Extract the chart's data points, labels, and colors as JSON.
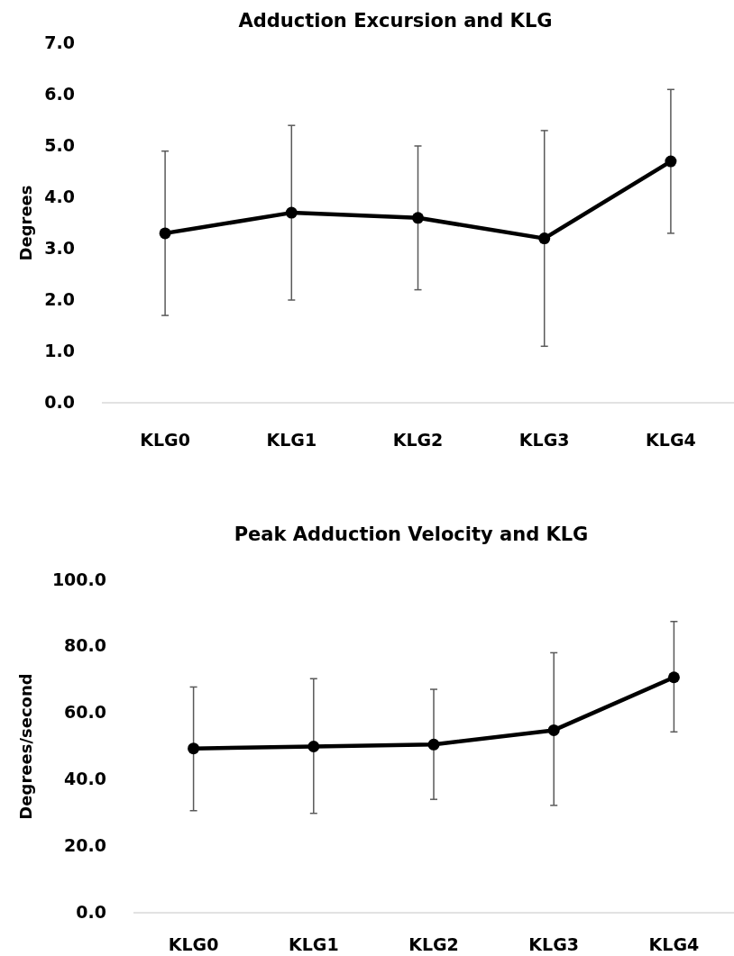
{
  "chart_data": [
    {
      "type": "line",
      "title": "Adduction Excursion and KLG",
      "ylabel": "Degrees",
      "categories": [
        "KLG0",
        "KLG1",
        "KLG2",
        "KLG3",
        "KLG4"
      ],
      "series": [
        {
          "color": "#000000",
          "values": [
            3.3,
            3.7,
            3.6,
            3.2,
            4.7
          ],
          "errors": [
            [
              1.7,
              4.9
            ],
            [
              2.0,
              5.4
            ],
            [
              2.2,
              5.0
            ],
            [
              1.1,
              5.3
            ],
            [
              3.3,
              6.1
            ]
          ]
        }
      ],
      "ylim": [
        0,
        7
      ],
      "yticks": [
        {
          "value": 0,
          "label": "0.0"
        },
        {
          "value": 1,
          "label": "1.0"
        },
        {
          "value": 2,
          "label": "2.0"
        },
        {
          "value": 3,
          "label": "3.0"
        },
        {
          "value": 4,
          "label": "4.0"
        },
        {
          "value": 5,
          "label": "5.0"
        },
        {
          "value": 6,
          "label": "6.0"
        },
        {
          "value": 7,
          "label": "7.0"
        }
      ],
      "marker": "circle",
      "line_style": "solid",
      "grid": false
    },
    {
      "type": "line",
      "title": "Peak Adduction Velocity and KLG",
      "ylabel": "Degrees/second",
      "categories": [
        "KLG0",
        "KLG1",
        "KLG2",
        "KLG3",
        "KLG4"
      ],
      "series": [
        {
          "color": "#000000",
          "values": [
            49.4,
            50.0,
            50.6,
            54.9,
            70.8
          ],
          "errors": [
            [
              30.7,
              67.9
            ],
            [
              29.9,
              70.4
            ],
            [
              34.1,
              67.2
            ],
            [
              32.3,
              78.2
            ],
            [
              54.4,
              87.6
            ]
          ]
        }
      ],
      "ylim": [
        0,
        100
      ],
      "yticks": [
        {
          "value": 0,
          "label": "0.0"
        },
        {
          "value": 20,
          "label": "20.0"
        },
        {
          "value": 40,
          "label": "40.0"
        },
        {
          "value": 60,
          "label": "60.0"
        },
        {
          "value": 80,
          "label": "80.0"
        },
        {
          "value": 100,
          "label": "100.0"
        }
      ],
      "marker": "circle",
      "line_style": "solid",
      "grid": false
    }
  ]
}
